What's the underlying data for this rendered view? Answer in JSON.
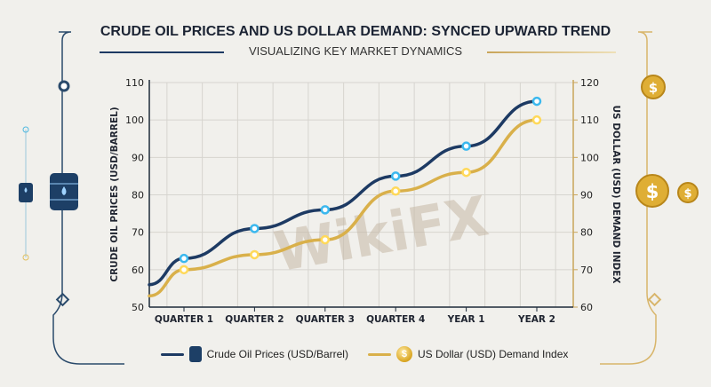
{
  "colors": {
    "oil": "#1d3a63",
    "oil_marker": "#3bb8ee",
    "dollar": "#d9b04a",
    "dollar_marker": "#ffd95a",
    "frame_left": "#2a4a6b",
    "frame_right": "#d8b56a"
  },
  "chart_data": {
    "type": "line",
    "title": "CRUDE OIL PRICES AND US DOLLAR DEMAND: SYNCED UPWARD TREND",
    "subtitle": "VISUALIZING KEY MARKET DYNAMICS",
    "categories": [
      "QUARTER 1",
      "QUARTER 2",
      "QUARTER 3",
      "QUARTER 4",
      "YEAR 1",
      "YEAR 2"
    ],
    "series": [
      {
        "name": "Crude Oil Prices (USD/Barrel)",
        "axis": "left",
        "values": [
          63,
          71,
          76,
          85,
          93,
          105
        ]
      },
      {
        "name": "US Dollar (USD) Demand Index",
        "axis": "right",
        "values": [
          70,
          74,
          78,
          91,
          96,
          110
        ]
      }
    ],
    "ylabel": "CRUDE OIL PRICES (USD/BARREL)",
    "y2label": "US DOLLAR (USD) DEMAND INDEX",
    "ylim": [
      50,
      110
    ],
    "y2lim": [
      60,
      120
    ],
    "yticks": [
      50,
      60,
      70,
      80,
      90,
      100,
      110
    ],
    "y2ticks": [
      60,
      70,
      80,
      90,
      100,
      110,
      120
    ],
    "grid": true,
    "legend": "bottom",
    "watermark": "WikiFX"
  },
  "icons": {
    "coin_symbol": "$"
  }
}
